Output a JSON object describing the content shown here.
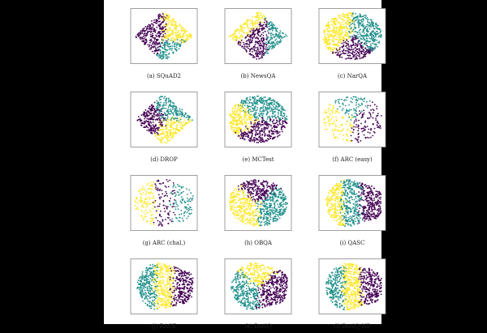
{
  "figure": {
    "colors": {
      "purple": "#440154",
      "teal": "#21918c",
      "yellow": "#fde725"
    },
    "panels": [
      {
        "caption": "(a) SQuAD2",
        "shape": "diamond",
        "regions": [
          "purple:left",
          "yellow:right",
          "teal:right-bottom"
        ]
      },
      {
        "caption": "(b) NewsQA",
        "shape": "diamond",
        "regions": [
          "purple:center",
          "teal:right",
          "yellow:top-left"
        ]
      },
      {
        "caption": "(c) NarQA",
        "shape": "ellipse",
        "regions": [
          "yellow:left",
          "teal:right",
          "purple:bottom"
        ]
      },
      {
        "caption": "(d) DROP",
        "shape": "diamond",
        "regions": [
          "purple:left",
          "teal:top-right",
          "yellow:bottom-right"
        ]
      },
      {
        "caption": "(e) MCTest",
        "shape": "ellipse",
        "regions": [
          "teal:top",
          "purple:bottom",
          "yellow:left"
        ]
      },
      {
        "caption": "(f) ARC (easy)",
        "shape": "sparse",
        "regions": [
          "purple:right",
          "teal:top",
          "yellow:left"
        ]
      },
      {
        "caption": "(g) ARC (chal.)",
        "shape": "sparse",
        "regions": [
          "yellow:left",
          "purple:center",
          "teal:right"
        ]
      },
      {
        "caption": "(h) OBQA",
        "shape": "ellipse",
        "regions": [
          "purple:top",
          "yellow:left",
          "teal:right"
        ]
      },
      {
        "caption": "(i) QASC",
        "shape": "blob",
        "regions": [
          "yellow:left",
          "teal:center",
          "purple:right"
        ]
      },
      {
        "caption": "(j) RACE",
        "shape": "blob",
        "regions": [
          "teal:left",
          "yellow:center",
          "purple:right"
        ]
      },
      {
        "caption": "(k) BoolQ",
        "shape": "blob",
        "regions": [
          "teal:left",
          "yellow:top",
          "purple:right"
        ]
      },
      {
        "caption": "(l) BoolQ-NP",
        "shape": "blob",
        "regions": [
          "teal:left",
          "yellow:center",
          "purple:right"
        ]
      }
    ]
  },
  "chart_data": {
    "type": "scatter",
    "title": "",
    "xlabel": "",
    "ylabel": "",
    "grid": false,
    "series": []
  }
}
